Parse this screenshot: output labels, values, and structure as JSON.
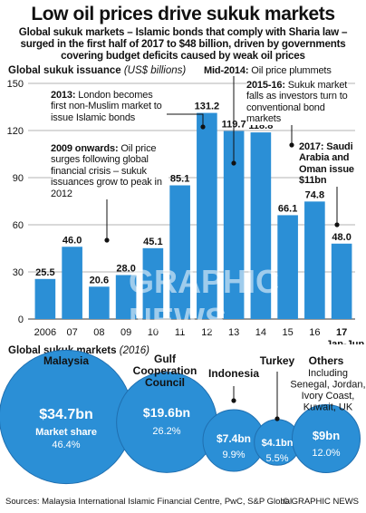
{
  "title": "Low oil prices drive sukuk markets",
  "subtitle": "Global sukuk markets – Islamic bonds that comply with Sharia law – surged in the first half of 2017 to $48 billion, driven by governments covering budget deficits caused by weak oil prices",
  "issuance_label": "Global sukuk issuance",
  "issuance_unit": "(US$ billions)",
  "markets_label": "Global sukuk markets",
  "markets_year": "(2016)",
  "annotations": {
    "mid2014": {
      "head": "Mid-2014:",
      "text": "Oil price plummets"
    },
    "y2013": {
      "head": "2013:",
      "text": "London becomes first non-Muslim market to issue Islamic bonds"
    },
    "y2015": {
      "head": "2015-16:",
      "text": "Sukuk market falls as investors turn to conventional bond markets"
    },
    "y2009": {
      "head": "2009 onwards:",
      "text": "Oil price surges following global financial crisis – sukuk issuances grow to peak in 2012"
    },
    "y2017": {
      "head": "2017: Saudi Arabia and Oman issue $11bn",
      "text": ""
    }
  },
  "chart_data": [
    {
      "type": "bar",
      "title": "Global sukuk issuance",
      "ylabel": "US$ billions",
      "categories": [
        "2006",
        "07",
        "08",
        "09",
        "10",
        "11",
        "12",
        "13",
        "14",
        "15",
        "16",
        "17"
      ],
      "category_sublabels": {
        "17": "Jan-Jun"
      },
      "values": [
        25.5,
        46.0,
        20.6,
        28.0,
        45.1,
        85.1,
        131.2,
        119.7,
        118.8,
        66.1,
        74.8,
        48.0
      ],
      "value_labels": [
        "25.5",
        "46.0",
        "20.6",
        "28.0",
        "45.1",
        "85.1",
        "131.2",
        "119.7",
        "118.8",
        "66.1",
        "74.8",
        "48.0"
      ],
      "yticks": [
        0,
        30,
        60,
        90,
        120,
        150
      ],
      "ylim": [
        0,
        150
      ],
      "grid": true,
      "colors": {
        "bar": "#2b8fd6",
        "grid": "#9a9a9a"
      }
    },
    {
      "type": "bubble",
      "title": "Global sukuk markets (2016)",
      "items": [
        {
          "name": "Malaysia",
          "value": 34.7,
          "value_label": "$34.7bn",
          "share_label": "Market share",
          "share": "46.4%"
        },
        {
          "name": "Gulf Cooperation Council",
          "value": 19.6,
          "value_label": "$19.6bn",
          "share": "26.2%"
        },
        {
          "name": "Indonesia",
          "value": 7.4,
          "value_label": "$7.4bn",
          "share": "9.9%"
        },
        {
          "name": "Turkey",
          "value": 4.1,
          "value_label": "$4.1bn",
          "share": "5.5%"
        },
        {
          "name": "Others",
          "sublabel": "Including Senegal, Jordan, Ivory Coast, Kuwait, UK",
          "value": 9.0,
          "value_label": "$9bn",
          "share": "12.0%"
        }
      ],
      "colors": {
        "bubble": "#2b8fd6",
        "bubble_dark": "#1f6fb0",
        "text": "#ffffff"
      }
    }
  ],
  "footer": {
    "sources": "Sources: Malaysia International Islamic Financial Centre, PwC, S&P Global",
    "credit": "© GRAPHIC NEWS"
  },
  "watermark": "GRAPHIC NEWS"
}
